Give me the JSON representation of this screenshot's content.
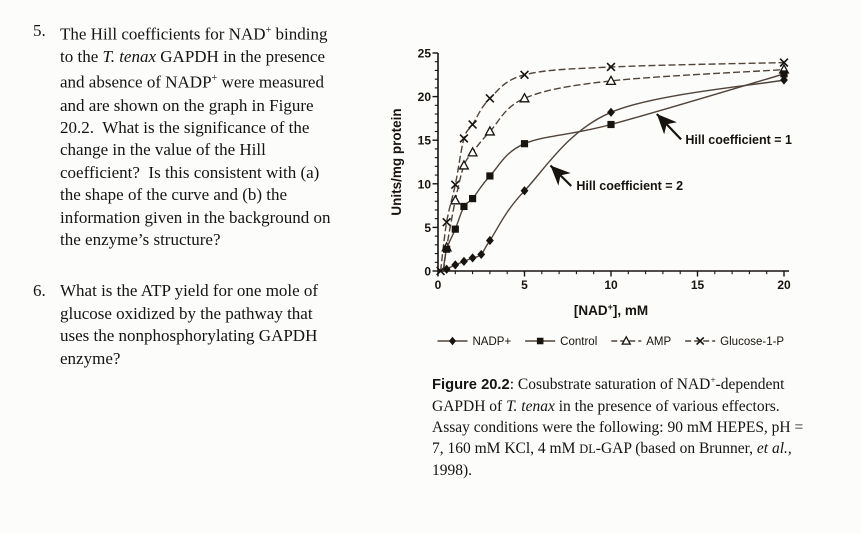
{
  "page": {
    "background": "#fcfcfa",
    "text_color": "#141414"
  },
  "questions": [
    {
      "number": "5.",
      "lines": [
        [
          {
            "t": "The Hill coefficients for NAD"
          },
          {
            "t": "+",
            "s": "sup"
          },
          {
            "t": " binding"
          }
        ],
        [
          {
            "t": "to the "
          },
          {
            "t": "T. tenax",
            "s": "i"
          },
          {
            "t": " GAPDH in the presence"
          }
        ],
        [
          {
            "t": "and absence of NADP"
          },
          {
            "t": "+",
            "s": "sup"
          },
          {
            "t": " were measured"
          }
        ],
        [
          {
            "t": "and are shown on the graph in Figure"
          }
        ],
        [
          {
            "t": "20.2.  What is the significance of the"
          }
        ],
        [
          {
            "t": "change in the value of the Hill"
          }
        ],
        [
          {
            "t": "coefficient?  Is this consistent with (a)"
          }
        ],
        [
          {
            "t": "the shape of the curve and (b) the"
          }
        ],
        [
          {
            "t": "information given in the background on"
          }
        ],
        [
          {
            "t": "the enzyme’s structure?"
          }
        ]
      ]
    },
    {
      "number": "6.",
      "lines": [
        [
          {
            "t": "What is the ATP yield for one mole of"
          }
        ],
        [
          {
            "t": "glucose oxidized by the pathway that"
          }
        ],
        [
          {
            "t": "uses the nonphosphorylating GAPDH"
          }
        ],
        [
          {
            "t": "enzyme?"
          }
        ]
      ]
    }
  ],
  "figure": {
    "caption_lines": [
      [
        {
          "t": "Figure 20.2",
          "s": "b"
        },
        {
          "t": ": Cosubstrate saturation of NAD"
        },
        {
          "t": "+",
          "s": "sup"
        },
        {
          "t": "-dependent"
        }
      ],
      [
        {
          "t": "GAPDH of "
        },
        {
          "t": "T. tenax",
          "s": "i"
        },
        {
          "t": " in the presence of various effectors."
        }
      ],
      [
        {
          "t": "Assay conditions were the following: 90 mM HEPES, pH ="
        }
      ],
      [
        {
          "t": "7, 160 mM KCl, 4 mM "
        },
        {
          "t": "DL",
          "s": "sc"
        },
        {
          "t": "-GAP (based on Brunner, "
        },
        {
          "t": "et al.,",
          "s": "i"
        }
      ],
      [
        {
          "t": "1998)."
        }
      ]
    ]
  },
  "chart_data": {
    "type": "line",
    "title": "",
    "xlabel": "[NAD+], mM",
    "xlabel_rich": [
      {
        "t": "[NAD"
      },
      {
        "t": "+",
        "s": "sup"
      },
      {
        "t": "], mM"
      }
    ],
    "ylabel": "Units/mg protein",
    "xlim": [
      0,
      20
    ],
    "ylim": [
      0,
      25
    ],
    "xticks": [
      0,
      5,
      10,
      15,
      20
    ],
    "yticks": [
      0,
      5,
      10,
      15,
      20,
      25
    ],
    "minor_tick_step": 1,
    "grid": false,
    "legend_position": "bottom",
    "line_color": "#50443a",
    "marker_color": "#17130f",
    "axis_color": "#17130f",
    "series": [
      {
        "name": "NADP+",
        "marker": "diamond",
        "marker_fill": "filled",
        "line_style": "solid",
        "line_start": [
          0.45,
          0
        ],
        "points": [
          [
            0.5,
            0.2
          ],
          [
            1,
            0.7
          ],
          [
            1.5,
            1.1
          ],
          [
            2,
            1.5
          ],
          [
            2.5,
            1.9
          ],
          [
            3,
            3.5
          ],
          [
            5,
            9.2
          ],
          [
            10,
            18.2
          ],
          [
            20,
            21.9
          ]
        ]
      },
      {
        "name": "Control",
        "marker": "square",
        "marker_fill": "filled",
        "line_style": "solid",
        "line_start": [
          0.3,
          0
        ],
        "points": [
          [
            0.5,
            2.5
          ],
          [
            1,
            4.8
          ],
          [
            1.5,
            7.4
          ],
          [
            2,
            8.3
          ],
          [
            3,
            10.9
          ],
          [
            5,
            14.6
          ],
          [
            10,
            16.8
          ],
          [
            20,
            22.6
          ]
        ]
      },
      {
        "name": "AMP",
        "marker": "triangle",
        "marker_fill": "open",
        "line_style": "dashed",
        "line_start": [
          0.33,
          0
        ],
        "points": [
          [
            0.5,
            2.7
          ],
          [
            1,
            8.1
          ],
          [
            1.5,
            12.1
          ],
          [
            2,
            13.6
          ],
          [
            3,
            16.0
          ],
          [
            5,
            19.8
          ],
          [
            10,
            21.8
          ],
          [
            20,
            23.1
          ]
        ]
      },
      {
        "name": "Glucose-1-P",
        "marker": "x",
        "marker_fill": "open",
        "line_style": "dashed",
        "points": [
          [
            0.15,
            0
          ],
          [
            0.5,
            5.6
          ],
          [
            1,
            9.9
          ],
          [
            1.5,
            15.2
          ],
          [
            2,
            16.8
          ],
          [
            3,
            19.8
          ],
          [
            5,
            22.5
          ],
          [
            10,
            23.4
          ],
          [
            20,
            23.9
          ]
        ]
      }
    ],
    "annotations": [
      {
        "text": "Hill coefficient = 1",
        "points_to": "Control",
        "text_at": [
          14.3,
          14.55
        ],
        "arrow_from": [
          14.05,
          15.1
        ],
        "arrow_tip": [
          12.65,
          18.0
        ]
      },
      {
        "text": "Hill coefficient = 2",
        "points_to": "NADP+",
        "text_at": [
          8.0,
          9.3
        ],
        "arrow_from": [
          7.7,
          9.75
        ],
        "arrow_tip": [
          6.5,
          12.1
        ]
      }
    ]
  }
}
